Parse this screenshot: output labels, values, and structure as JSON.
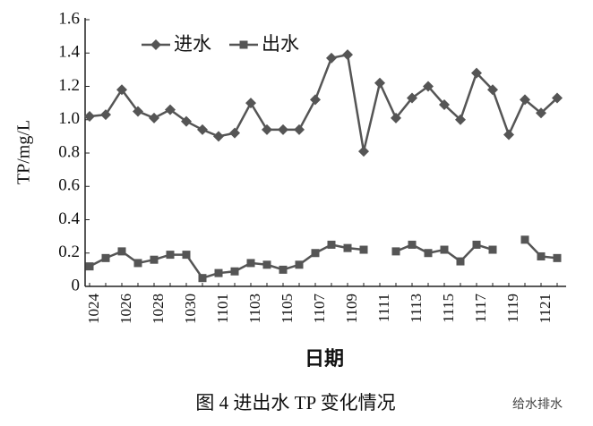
{
  "chart_data": {
    "type": "line",
    "ylabel": "TP/mg/L",
    "xlabel": "日期",
    "caption": "图 4   进出水 TP 变化情况",
    "watermark": "给水排水",
    "categories": [
      "1024",
      null,
      "1026",
      null,
      "1028",
      null,
      "1030",
      null,
      "1101",
      null,
      "1103",
      null,
      "1105",
      null,
      "1107",
      null,
      "1109",
      null,
      "1111",
      null,
      "1113",
      null,
      "1115",
      null,
      "1117",
      null,
      "1119",
      null,
      "1121",
      null
    ],
    "series": [
      {
        "name": "进水",
        "color": "#555555",
        "marker": "diamond",
        "values": [
          1.02,
          1.03,
          1.18,
          1.05,
          1.01,
          1.06,
          0.99,
          0.94,
          0.9,
          0.92,
          1.1,
          0.94,
          0.94,
          0.94,
          1.12,
          1.37,
          1.39,
          0.81,
          1.22,
          1.01,
          1.13,
          1.2,
          1.09,
          1.0,
          1.28,
          1.18,
          0.91,
          1.12,
          1.04,
          1.13
        ]
      },
      {
        "name": "出水",
        "color": "#555555",
        "marker": "square",
        "values": [
          0.12,
          0.17,
          0.21,
          0.14,
          0.16,
          0.19,
          0.19,
          0.05,
          0.08,
          0.09,
          0.14,
          0.13,
          0.1,
          0.13,
          0.2,
          0.25,
          0.23,
          0.22,
          null,
          0.21,
          0.25,
          0.2,
          0.22,
          0.15,
          0.25,
          0.22,
          null,
          0.28,
          0.18,
          0.17
        ]
      }
    ],
    "ylim": [
      0,
      1.6
    ],
    "yticks": [
      0,
      0.2,
      0.4,
      0.6,
      0.8,
      {
        "value": 1,
        "label": "1.0"
      },
      1.2,
      1.4,
      1.6
    ],
    "grid": false
  }
}
